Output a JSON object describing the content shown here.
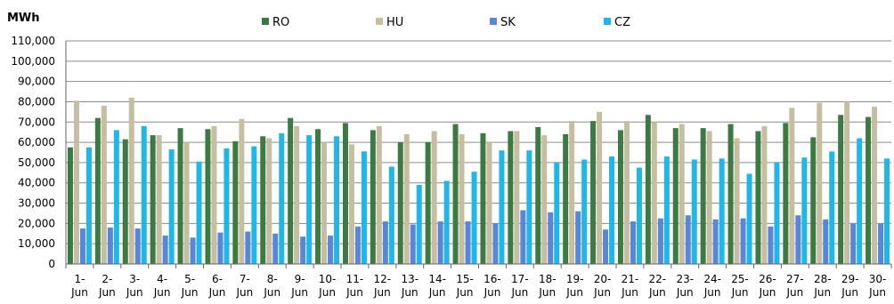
{
  "chart_data": {
    "type": "bar",
    "unit_label": "MWh",
    "categories": [
      "1-Jun",
      "2-Jun",
      "3-Jun",
      "4-Jun",
      "5-Jun",
      "6-Jun",
      "7-Jun",
      "8-Jun",
      "9-Jun",
      "10-Jun",
      "11-Jun",
      "12-Jun",
      "13-Jun",
      "14-Jun",
      "15-Jun",
      "16-Jun",
      "17-Jun",
      "18-Jun",
      "19-Jun",
      "20-Jun",
      "21-Jun",
      "22-Jun",
      "23-Jun",
      "24-Jun",
      "25-Jun",
      "26-Jun",
      "27-Jun",
      "28-Jun",
      "29-Jun",
      "30-Jun"
    ],
    "y_ticks": [
      "0",
      "10,000",
      "20,000",
      "30,000",
      "40,000",
      "50,000",
      "60,000",
      "70,000",
      "80,000",
      "90,000",
      "100,000",
      "110,000"
    ],
    "ylim": [
      0,
      110000
    ],
    "legend_position": "top",
    "grid": true,
    "series": [
      {
        "name": "RO",
        "color": "#3d7a43",
        "values": [
          57500,
          72000,
          61500,
          63500,
          67000,
          66500,
          60500,
          63000,
          72000,
          66500,
          69500,
          66000,
          60000,
          60000,
          69000,
          64500,
          65500,
          67500,
          64000,
          70500,
          66000,
          73500,
          67000,
          67000,
          69000,
          65500,
          69500,
          62500,
          73500,
          72500
        ]
      },
      {
        "name": "HU",
        "color": "#c6bea0",
        "values": [
          80500,
          78000,
          82000,
          63500,
          60000,
          68000,
          71500,
          62000,
          68000,
          60000,
          59000,
          68000,
          64000,
          65500,
          64000,
          60000,
          65500,
          63500,
          70500,
          75000,
          70500,
          70000,
          69000,
          65500,
          62000,
          68000,
          77000,
          79500,
          80000,
          77500
        ]
      },
      {
        "name": "SK",
        "color": "#5a86d8",
        "values": [
          17500,
          18000,
          17500,
          14000,
          13000,
          15500,
          16000,
          15000,
          13500,
          14000,
          18500,
          21000,
          19500,
          21000,
          21000,
          20000,
          26500,
          25500,
          26000,
          17000,
          21000,
          22500,
          24000,
          22000,
          22500,
          18500,
          24000,
          22000,
          20000,
          20000
        ]
      },
      {
        "name": "CZ",
        "color": "#1eb7ea",
        "values": [
          57500,
          66000,
          68000,
          56500,
          50500,
          57000,
          58000,
          64500,
          63500,
          63000,
          55500,
          48000,
          39000,
          41000,
          45500,
          56000,
          56000,
          50000,
          51500,
          53000,
          47500,
          53000,
          51500,
          52000,
          44500,
          50000,
          52500,
          55500,
          62000,
          52000
        ]
      }
    ]
  }
}
